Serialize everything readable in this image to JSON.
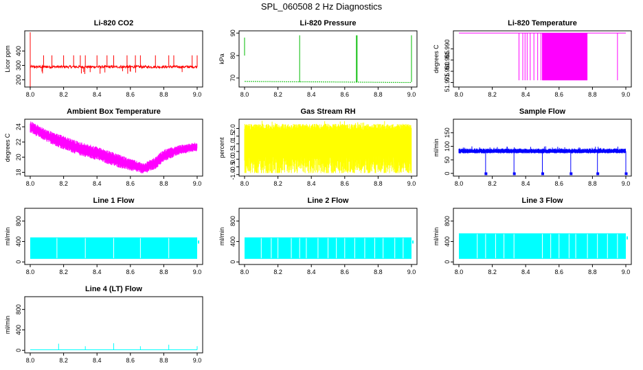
{
  "title": "SPL_060508  2 Hz Diagnostics",
  "colors": {
    "co2": "#ff0000",
    "pressure": "#00bb00",
    "temperature": "#ff00ff",
    "ambient": "#ff00ff",
    "rh": "#ffff00",
    "sample": "#0000ff",
    "lines": "#00ffff"
  },
  "chart_data": [
    {
      "type": "line",
      "title": "Li-820 CO2",
      "xlabel": "",
      "ylabel": "Licor ppm",
      "xlim": [
        8.0,
        9.0
      ],
      "ylim": [
        150,
        540
      ],
      "xticks": [
        "8.0",
        "8.2",
        "8.4",
        "8.6",
        "8.8",
        "9.0"
      ],
      "yticks": [
        {
          "v": 200,
          "label": "200"
        },
        {
          "v": 300,
          "label": "300"
        },
        {
          "v": 400,
          "label": "400"
        }
      ],
      "color_key": "co2",
      "pattern": "baseline_spikes",
      "series": [
        {
          "name": "CO2",
          "baseline": [
            8.0,
            290,
            9.0,
            290
          ],
          "noise": 18,
          "spikes": [
            8.08,
            8.13,
            8.2,
            8.26,
            8.3,
            8.33,
            8.4,
            8.46,
            8.5,
            8.58,
            8.63,
            8.66,
            8.75,
            8.83,
            8.86,
            8.97,
            9.0
          ],
          "spike_top": 370,
          "start_spike_top": 530,
          "start_spike_bottom": 150
        }
      ]
    },
    {
      "type": "line",
      "title": "Li-820 Pressure",
      "xlabel": "",
      "ylabel": "kPa",
      "xlim": [
        8.0,
        9.0
      ],
      "ylim": [
        66,
        91
      ],
      "xticks": [
        "8.0",
        "8.2",
        "8.4",
        "8.6",
        "8.8",
        "9.0"
      ],
      "yticks": [
        {
          "v": 70,
          "label": "70"
        },
        {
          "v": 80,
          "label": "80"
        },
        {
          "v": 90,
          "label": "90"
        }
      ],
      "color_key": "pressure",
      "pattern": "pressure",
      "series": [
        {
          "name": "Pressure",
          "baseline": [
            8.0,
            68.5,
            9.0,
            68.0
          ],
          "spikes": [
            8.33,
            8.67,
            9.0
          ],
          "spike_top": 89,
          "start_range": [
            80,
            88
          ]
        }
      ]
    },
    {
      "type": "line",
      "title": "Li-820 Temperature",
      "xlabel": "",
      "ylabel": "degrees C",
      "xlim": [
        8.0,
        9.0
      ],
      "ylim": [
        51.973,
        51.998
      ],
      "xticks": [
        "8.0",
        "8.2",
        "8.4",
        "8.6",
        "8.8",
        "9.0"
      ],
      "yticks": [
        {
          "v": 51.975,
          "label": "51.975"
        },
        {
          "v": 51.98,
          "label": "51.980"
        },
        {
          "v": 51.985,
          "label": "51.985"
        },
        {
          "v": 51.99,
          "label": "51.990"
        }
      ],
      "color_key": "temperature",
      "pattern": "temperature",
      "series": [
        {
          "name": "Temperature",
          "baseline": [
            8.0,
            51.997,
            9.0,
            51.997
          ],
          "drop_value": 51.976,
          "dense_range": [
            8.5,
            8.77
          ],
          "sparse_range": [
            8.36,
            8.5
          ],
          "extra_drops": [
            8.95
          ]
        }
      ]
    },
    {
      "type": "line",
      "title": "Ambient Box Temperature",
      "xlabel": "",
      "ylabel": "degrees C",
      "xlim": [
        8.0,
        9.0
      ],
      "ylim": [
        17.5,
        25
      ],
      "xticks": [
        "8.0",
        "8.2",
        "8.4",
        "8.6",
        "8.8",
        "9.0"
      ],
      "yticks": [
        {
          "v": 18,
          "label": "18"
        },
        {
          "v": 20,
          "label": "20"
        },
        {
          "v": 22,
          "label": "22"
        },
        {
          "v": 24,
          "label": "24"
        }
      ],
      "color_key": "ambient",
      "pattern": "band",
      "series": [
        {
          "name": "Ambient",
          "x": [
            8.0,
            8.1,
            8.2,
            8.3,
            8.4,
            8.5,
            8.6,
            8.68,
            8.75,
            8.8,
            8.9,
            9.0
          ],
          "upper": [
            24.8,
            23.6,
            22.8,
            22.0,
            21.4,
            20.6,
            19.8,
            19.2,
            20.0,
            21.0,
            21.6,
            22.0
          ],
          "lower": [
            23.2,
            22.0,
            21.0,
            20.2,
            19.6,
            18.8,
            18.2,
            17.8,
            18.4,
            19.4,
            20.4,
            20.8
          ]
        }
      ]
    },
    {
      "type": "line",
      "title": "Gas Stream RH",
      "xlabel": "",
      "ylabel": "percent",
      "xlim": [
        8.0,
        9.0
      ],
      "ylim": [
        -1.1,
        2.6
      ],
      "xticks": [
        "8.0",
        "8.2",
        "8.4",
        "8.6",
        "8.8",
        "9.0"
      ],
      "yticks": [
        {
          "v": -1,
          "label": "-1.0"
        },
        {
          "v": -0.5,
          "label": "-0.5"
        },
        {
          "v": 0,
          "label": "0.0"
        },
        {
          "v": 0.5,
          "label": "0.5"
        },
        {
          "v": 1,
          "label": "1.0"
        },
        {
          "v": 1.5,
          "label": "1.5"
        },
        {
          "v": 2,
          "label": "2.0"
        }
      ],
      "color_key": "rh",
      "pattern": "noise_fill",
      "series": [
        {
          "name": "RH",
          "top": 2.3,
          "bottom": -0.3,
          "min": -0.9,
          "max": 2.5
        }
      ]
    },
    {
      "type": "line",
      "title": "Sample Flow",
      "xlabel": "",
      "ylabel": "ml/min",
      "xlim": [
        8.0,
        9.0
      ],
      "ylim": [
        -10,
        200
      ],
      "xticks": [
        "8.0",
        "8.2",
        "8.4",
        "8.6",
        "8.8",
        "9.0"
      ],
      "yticks": [
        {
          "v": 0,
          "label": "0"
        },
        {
          "v": 50,
          "label": "50"
        },
        {
          "v": 100,
          "label": "100"
        },
        {
          "v": 150,
          "label": "150"
        }
      ],
      "color_key": "sample",
      "pattern": "flow_dips",
      "series": [
        {
          "name": "Sample",
          "baseline": [
            8.0,
            82,
            9.0,
            82
          ],
          "band": [
            74,
            92
          ],
          "dips": [
            8.16,
            8.33,
            8.5,
            8.67,
            8.83,
            9.0
          ],
          "dip_bottom": 0
        }
      ]
    },
    {
      "type": "line",
      "title": "Line 1 Flow",
      "xlabel": "",
      "ylabel": "ml/min",
      "xlim": [
        8.0,
        9.0
      ],
      "ylim": [
        -50,
        1050
      ],
      "xticks": [
        "8.0",
        "8.2",
        "8.4",
        "8.6",
        "8.8",
        "9.0"
      ],
      "yticks": [
        {
          "v": 0,
          "label": "0"
        },
        {
          "v": 400,
          "label": "400"
        },
        {
          "v": 800,
          "label": "800"
        }
      ],
      "color_key": "lines",
      "pattern": "block",
      "series": [
        {
          "name": "Line 1",
          "top": 480,
          "bottom": 60,
          "gaps": [
            8.16,
            8.33,
            8.5,
            8.66,
            8.83
          ]
        }
      ]
    },
    {
      "type": "line",
      "title": "Line 2 Flow",
      "xlabel": "",
      "ylabel": "ml/min",
      "xlim": [
        8.0,
        9.0
      ],
      "ylim": [
        -50,
        1050
      ],
      "xticks": [
        "8.0",
        "8.2",
        "8.4",
        "8.6",
        "8.8",
        "9.0"
      ],
      "yticks": [
        {
          "v": 0,
          "label": "0"
        },
        {
          "v": 400,
          "label": "400"
        },
        {
          "v": 800,
          "label": "800"
        }
      ],
      "color_key": "lines",
      "pattern": "block",
      "series": [
        {
          "name": "Line 2",
          "top": 480,
          "bottom": 60,
          "gaps": [
            8.1,
            8.16,
            8.2,
            8.28,
            8.33,
            8.37,
            8.44,
            8.5,
            8.55,
            8.6,
            8.66,
            8.72,
            8.78,
            8.83,
            8.9,
            8.95
          ]
        }
      ]
    },
    {
      "type": "line",
      "title": "Line 3 Flow",
      "xlabel": "",
      "ylabel": "ml/min",
      "xlim": [
        8.0,
        9.0
      ],
      "ylim": [
        -50,
        1050
      ],
      "xticks": [
        "8.0",
        "8.2",
        "8.4",
        "8.6",
        "8.8",
        "9.0"
      ],
      "yticks": [
        {
          "v": 0,
          "label": "0"
        },
        {
          "v": 400,
          "label": "400"
        },
        {
          "v": 800,
          "label": "800"
        }
      ],
      "color_key": "lines",
      "pattern": "block",
      "series": [
        {
          "name": "Line 3",
          "top": 560,
          "bottom": 60,
          "gaps": [
            8.11,
            8.16,
            8.22,
            8.27,
            8.33,
            8.5,
            8.55,
            8.6,
            8.66,
            8.7,
            8.77,
            8.83,
            8.89,
            8.95
          ]
        }
      ]
    },
    {
      "type": "line",
      "title": "Line 4 (LT) Flow",
      "xlabel": "",
      "ylabel": "ml/min",
      "xlim": [
        8.0,
        9.0
      ],
      "ylim": [
        -50,
        1050
      ],
      "xticks": [
        "8.0",
        "8.2",
        "8.4",
        "8.6",
        "8.8",
        "9.0"
      ],
      "yticks": [
        {
          "v": 0,
          "label": "0"
        },
        {
          "v": 400,
          "label": "400"
        },
        {
          "v": 800,
          "label": "800"
        }
      ],
      "color_key": "lines",
      "pattern": "flat_spikes",
      "series": [
        {
          "name": "Line 4",
          "baseline": [
            8.0,
            10,
            9.0,
            10
          ],
          "spikes": [
            8.17,
            8.33,
            8.5,
            8.66,
            8.83,
            9.0
          ],
          "spike_tops": [
            130,
            80,
            140,
            80,
            110,
            80
          ]
        }
      ]
    }
  ]
}
